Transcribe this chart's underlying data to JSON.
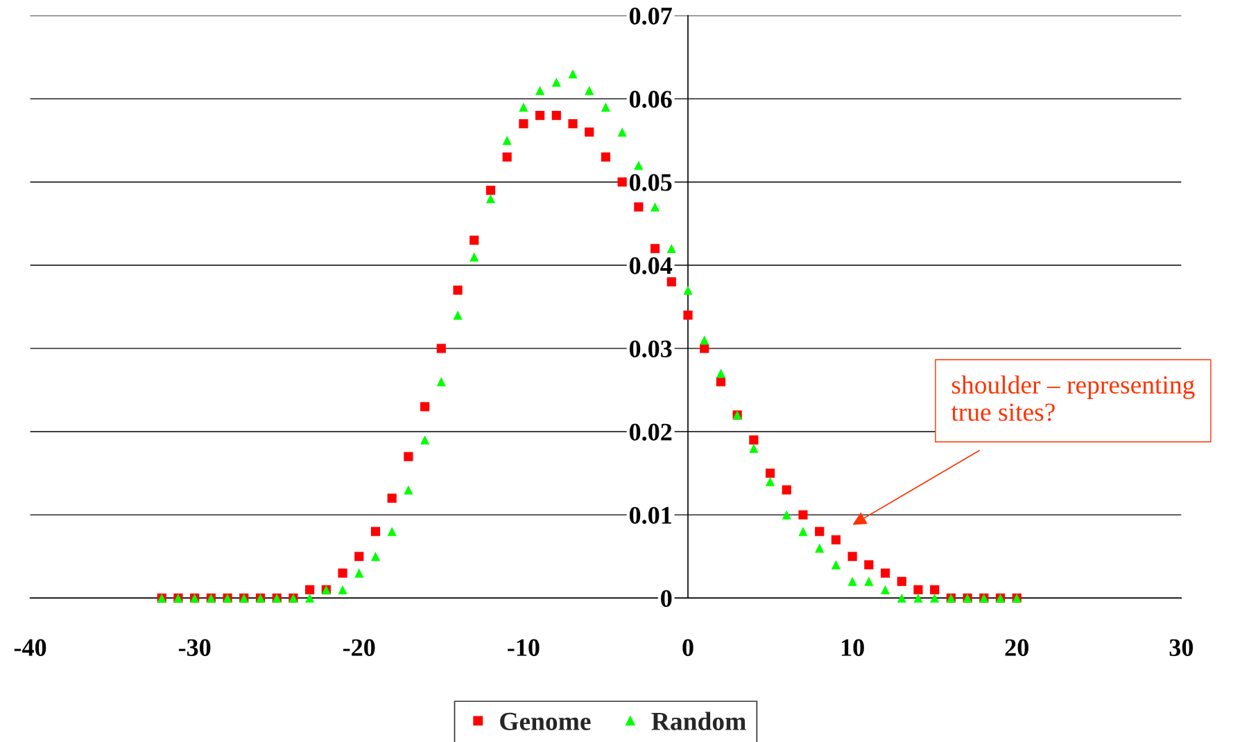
{
  "chart_data": {
    "type": "scatter",
    "xlim": [
      -40,
      30
    ],
    "ylim": [
      0,
      0.07
    ],
    "xticks": [
      -40,
      -30,
      -20,
      -10,
      0,
      10,
      20,
      30
    ],
    "yticks": [
      0,
      0.01,
      0.02,
      0.03,
      0.04,
      0.05,
      0.06,
      0.07
    ],
    "grid": "y",
    "legend": "bottom",
    "x": [
      -32,
      -31,
      -30,
      -29,
      -28,
      -27,
      -26,
      -25,
      -24,
      -23,
      -22,
      -21,
      -20,
      -19,
      -18,
      -17,
      -16,
      -15,
      -14,
      -13,
      -12,
      -11,
      -10,
      -9,
      -8,
      -7,
      -6,
      -5,
      -4,
      -3,
      -2,
      -1,
      0,
      1,
      2,
      3,
      4,
      5,
      6,
      7,
      8,
      9,
      10,
      11,
      12,
      13,
      14,
      15,
      16,
      17,
      18,
      19,
      20
    ],
    "series": [
      {
        "name": "Genome",
        "color": "#ff0000",
        "marker": "square",
        "values": [
          0,
          0,
          0,
          0,
          0,
          0,
          0,
          0,
          0,
          0.001,
          0.001,
          0.003,
          0.005,
          0.008,
          0.012,
          0.017,
          0.023,
          0.03,
          0.037,
          0.043,
          0.049,
          0.053,
          0.057,
          0.058,
          0.058,
          0.057,
          0.056,
          0.053,
          0.05,
          0.047,
          0.042,
          0.038,
          0.034,
          0.03,
          0.026,
          0.022,
          0.019,
          0.015,
          0.013,
          0.01,
          0.008,
          0.007,
          0.005,
          0.004,
          0.003,
          0.002,
          0.001,
          0.001,
          0,
          0,
          0,
          0,
          0
        ]
      },
      {
        "name": "Random",
        "color": "#00ff00",
        "marker": "triangle",
        "values": [
          0,
          0,
          0,
          0,
          0,
          0,
          0,
          0,
          0,
          0,
          0.001,
          0.001,
          0.003,
          0.005,
          0.008,
          0.013,
          0.019,
          0.026,
          0.034,
          0.041,
          0.048,
          0.055,
          0.059,
          0.061,
          0.062,
          0.063,
          0.061,
          0.059,
          0.056,
          0.052,
          0.047,
          0.042,
          0.037,
          0.031,
          0.027,
          0.022,
          0.018,
          0.014,
          0.01,
          0.008,
          0.006,
          0.004,
          0.002,
          0.002,
          0.001,
          0,
          0,
          0,
          0,
          0,
          0,
          0,
          0
        ]
      }
    ],
    "annotations": [
      "shoulder – representing\ntrue sites?"
    ]
  }
}
